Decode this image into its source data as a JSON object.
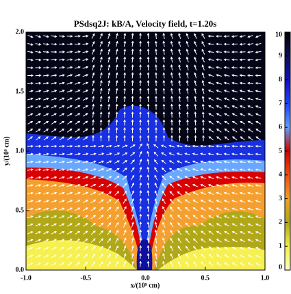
{
  "chart_data": {
    "type": "vector-field",
    "title": "PSdsq2J:  kB/A,  Velocity field,  t=1.20s",
    "x_label": "x/(10⁹ cm)",
    "y_label": "y/(10⁹ cm)",
    "xlim": [
      -1,
      1
    ],
    "ylim": [
      0,
      2
    ],
    "xticks": [
      {
        "value": -1,
        "label": "-1.0"
      },
      {
        "value": -0.5,
        "label": "-0.5"
      },
      {
        "value": 0,
        "label": "0.0"
      },
      {
        "value": 0.5,
        "label": "0.5"
      },
      {
        "value": 1,
        "label": "1.0"
      }
    ],
    "yticks": [
      {
        "value": 0,
        "label": "0.0"
      },
      {
        "value": 0.5,
        "label": "0.5"
      },
      {
        "value": 1,
        "label": "1.0"
      },
      {
        "value": 1.5,
        "label": "1.5"
      },
      {
        "value": 2,
        "label": "2.0"
      }
    ],
    "clim": [
      0,
      10
    ],
    "cticks": [
      0,
      1,
      2,
      3,
      4,
      5,
      6,
      7,
      8,
      9,
      10
    ],
    "colormap": [
      "#ffffc0",
      "#f4f040",
      "#b0a818",
      "#f4a020",
      "#f05010",
      "#d00000",
      "#60a0ff",
      "#2040ff",
      "#1010c0",
      "#101050",
      "#000000"
    ]
  }
}
